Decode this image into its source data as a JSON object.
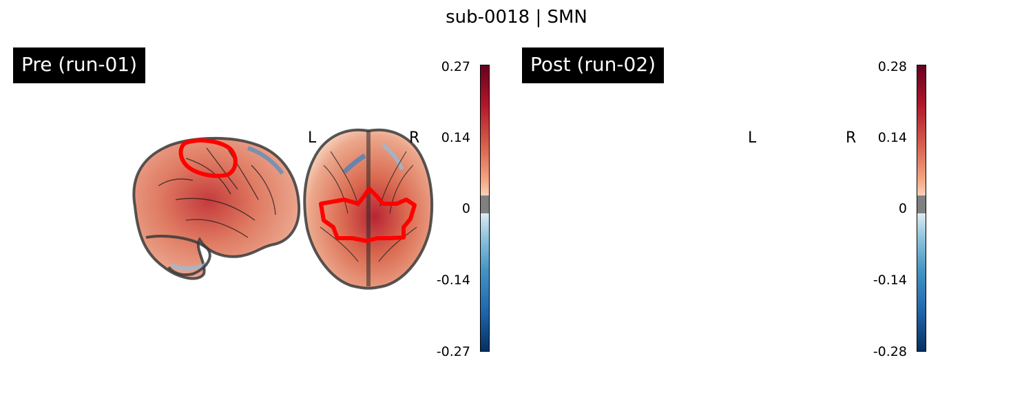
{
  "figure": {
    "title": "sub-0018 | SMN"
  },
  "panels": [
    {
      "label": "Pre (run-01)",
      "orientation_left": "L",
      "orientation_right": "R",
      "colorbar": {
        "ticks": [
          "0.27",
          "0.14",
          "0",
          "-0.14",
          "-0.27"
        ],
        "max": 0.27,
        "min": -0.27,
        "colormap": "RdBu_r"
      },
      "roi_outline_color": "#ff0000"
    },
    {
      "label": "Post (run-02)",
      "orientation_left": "L",
      "orientation_right": "R",
      "colorbar": {
        "ticks": [
          "0.28",
          "0.14",
          "0",
          "-0.14",
          "-0.28"
        ],
        "max": 0.28,
        "min": -0.28,
        "colormap": "RdBu_r"
      },
      "roi_outline_color": "#ff0000"
    }
  ]
}
